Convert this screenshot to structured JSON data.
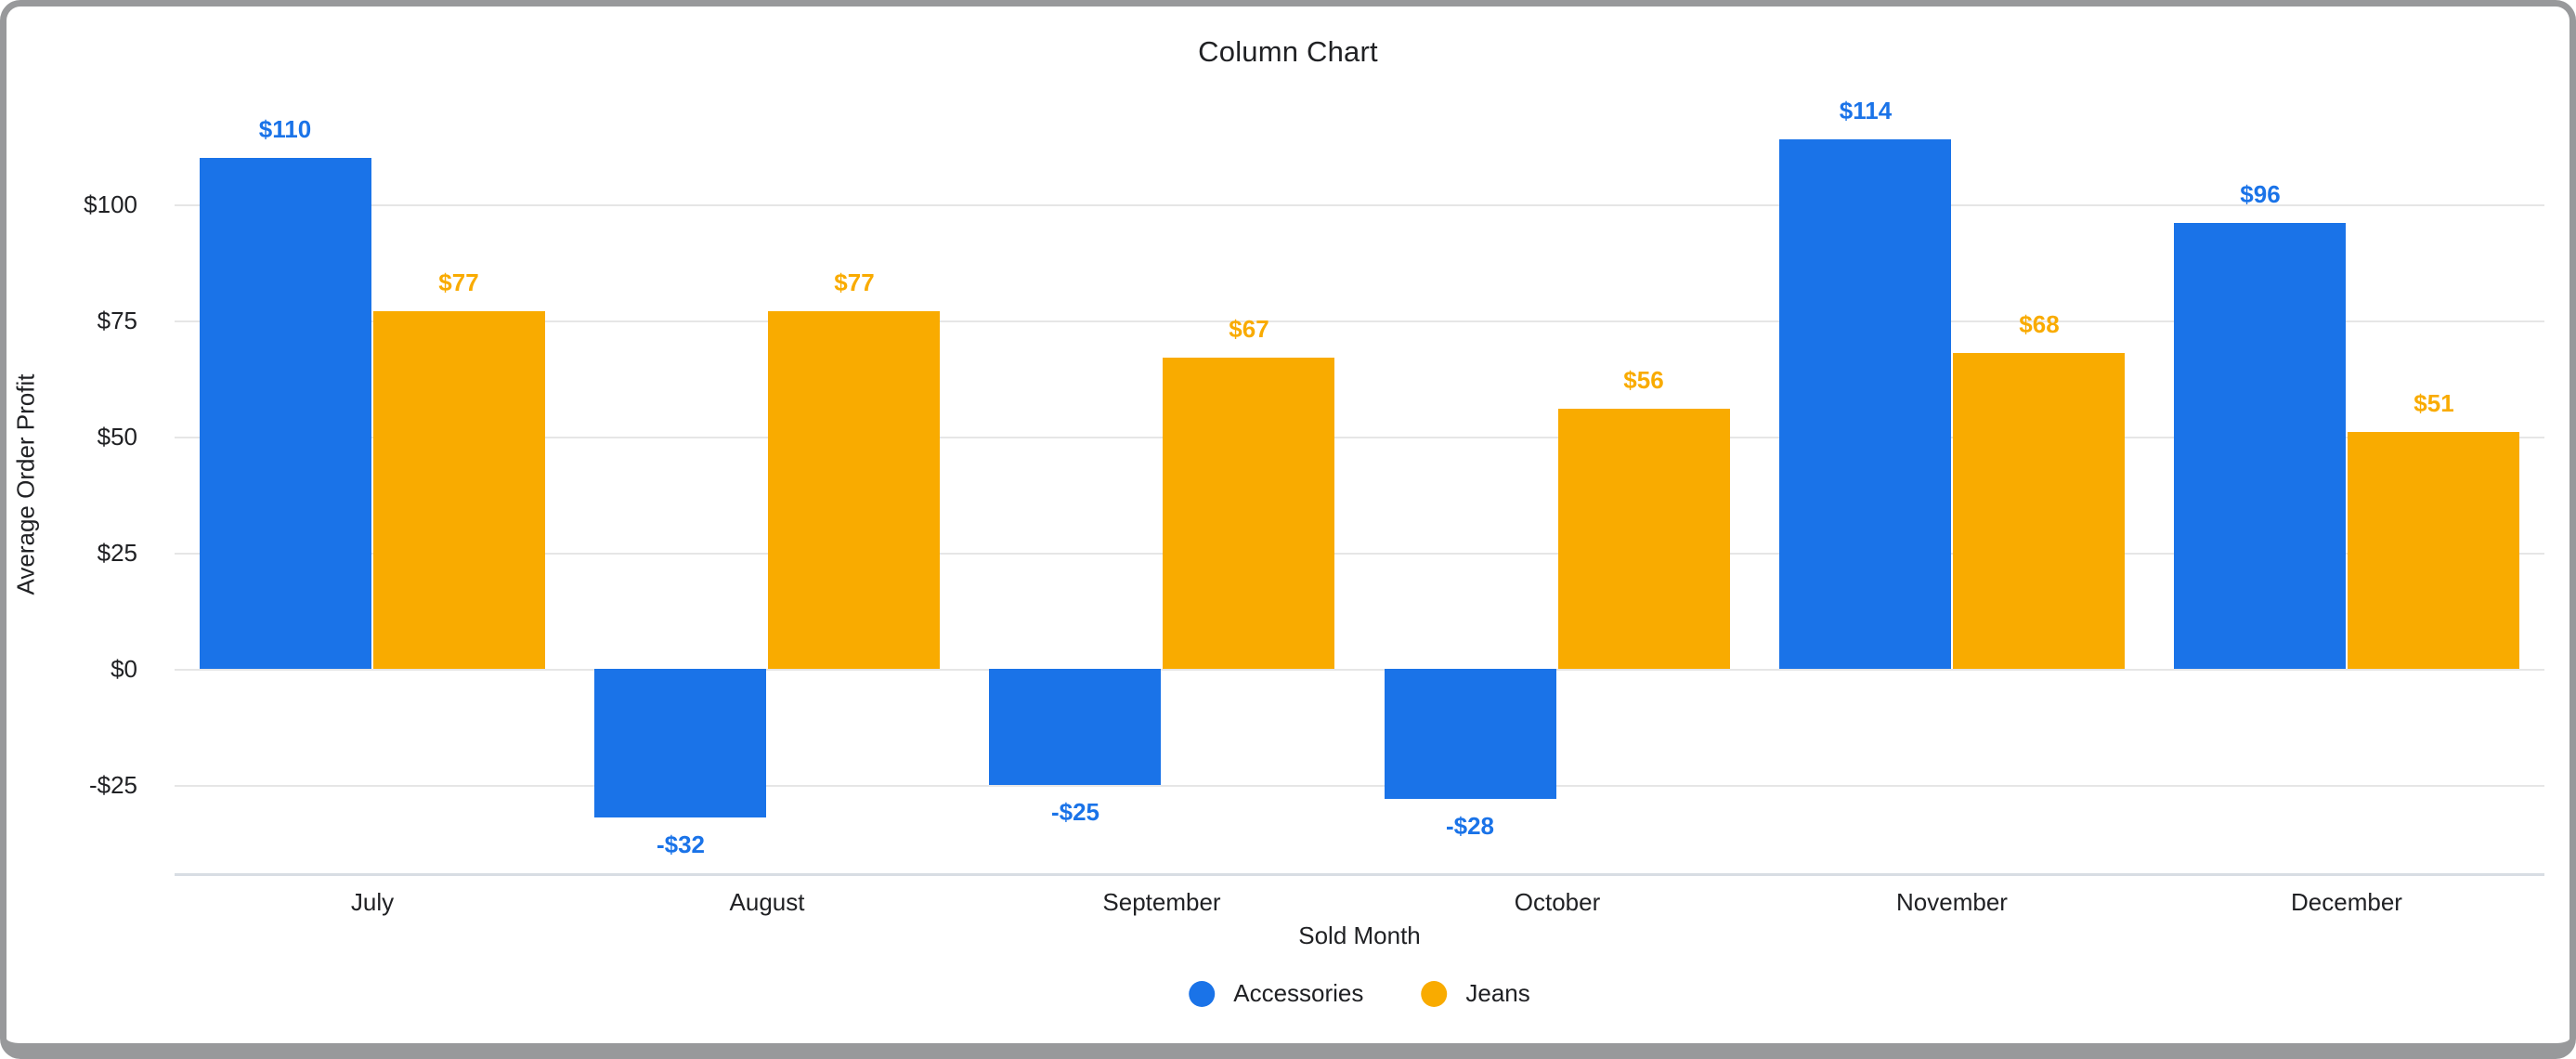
{
  "window": {
    "title": "Column Chart"
  },
  "colors": {
    "series_accessories": "#1a73e8",
    "series_jeans": "#f9ab00",
    "grid": "#e6e6e6",
    "axis_line": "#d8dde3",
    "text": "#202124",
    "frame": "#98999b"
  },
  "chart_data": {
    "type": "bar",
    "title": "Column Chart",
    "xlabel": "Sold Month",
    "ylabel": "Average Order Profit",
    "categories": [
      "July",
      "August",
      "September",
      "October",
      "November",
      "December"
    ],
    "series": [
      {
        "name": "Accessories",
        "color": "#1a73e8",
        "values": [
          110,
          -32,
          -25,
          -28,
          114,
          96
        ],
        "labels": [
          "$110",
          "-$32",
          "-$25",
          "-$28",
          "$114",
          "$96"
        ]
      },
      {
        "name": "Jeans",
        "color": "#f9ab00",
        "values": [
          77,
          77,
          67,
          56,
          68,
          51
        ],
        "labels": [
          "$77",
          "$77",
          "$67",
          "$56",
          "$68",
          "$51"
        ]
      }
    ],
    "y_ticks": [
      {
        "value": 100,
        "label": "$100"
      },
      {
        "value": 75,
        "label": "$75"
      },
      {
        "value": 50,
        "label": "$50"
      },
      {
        "value": 25,
        "label": "$25"
      },
      {
        "value": 0,
        "label": "$0"
      },
      {
        "value": -25,
        "label": "-$25"
      }
    ],
    "ylim": [
      -44,
      124
    ],
    "grid": true,
    "legend_position": "bottom"
  }
}
